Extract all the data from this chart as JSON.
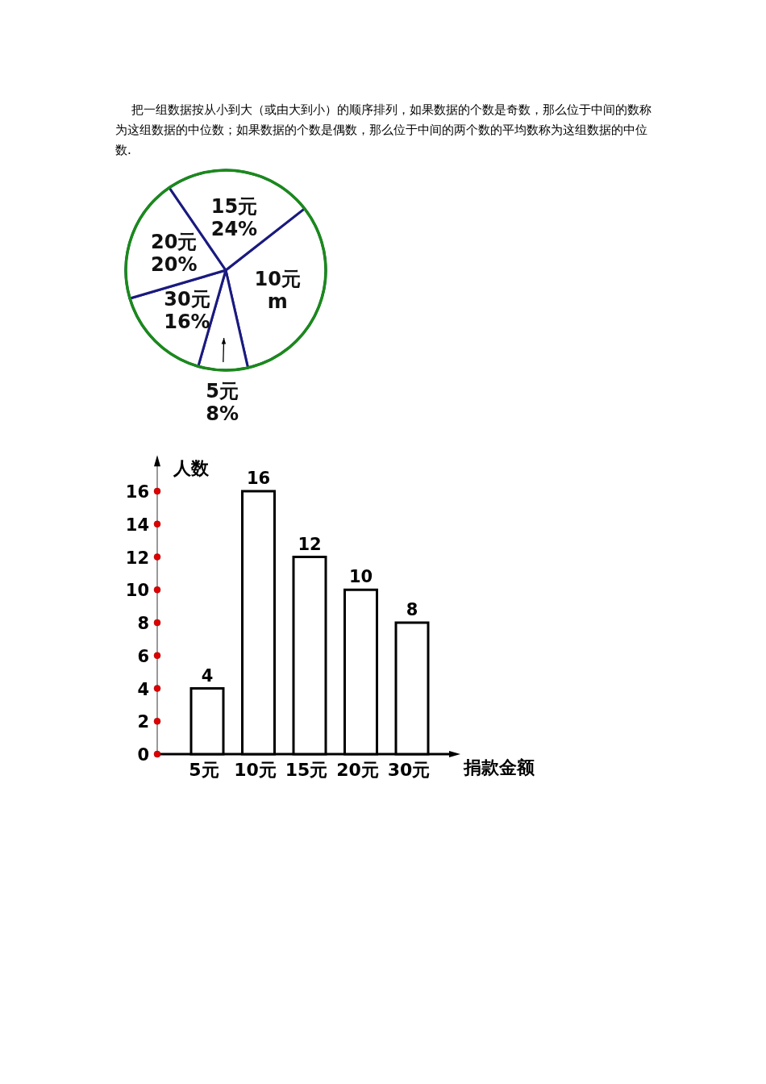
{
  "chart_data": [
    {
      "type": "pie",
      "annotations": [
        "把一组数据按从小到大（或由大到小）的顺序排列，如果数据的个数是奇数，那么位于中间的数称为这组数据的中位数；如果数据的个数是偶数，那么位于中间的两个数的平均数称为这组数据的中位数."
      ],
      "categories": [
        "10元",
        "5元",
        "30元",
        "20元",
        "15元"
      ],
      "values": [
        32,
        8,
        16,
        20,
        24
      ],
      "value_labels": [
        "m",
        "8%",
        "16%",
        "20%",
        "24%"
      ],
      "colors": [
        "#ffffff",
        "#ffffff",
        "#ffffff",
        "#ffffff",
        "#ffffff"
      ]
    },
    {
      "type": "bar",
      "xlabel": "捐款金额",
      "ylabel": "人数",
      "categories": [
        "5元",
        "10元",
        "15元",
        "20元",
        "30元"
      ],
      "values": [
        4,
        16,
        12,
        10,
        8
      ],
      "color": "#ffffff",
      "ylim": [
        0,
        18
      ],
      "yticks": [
        0,
        2,
        4,
        6,
        8,
        10,
        12,
        14,
        16
      ],
      "data_labels": true
    }
  ]
}
